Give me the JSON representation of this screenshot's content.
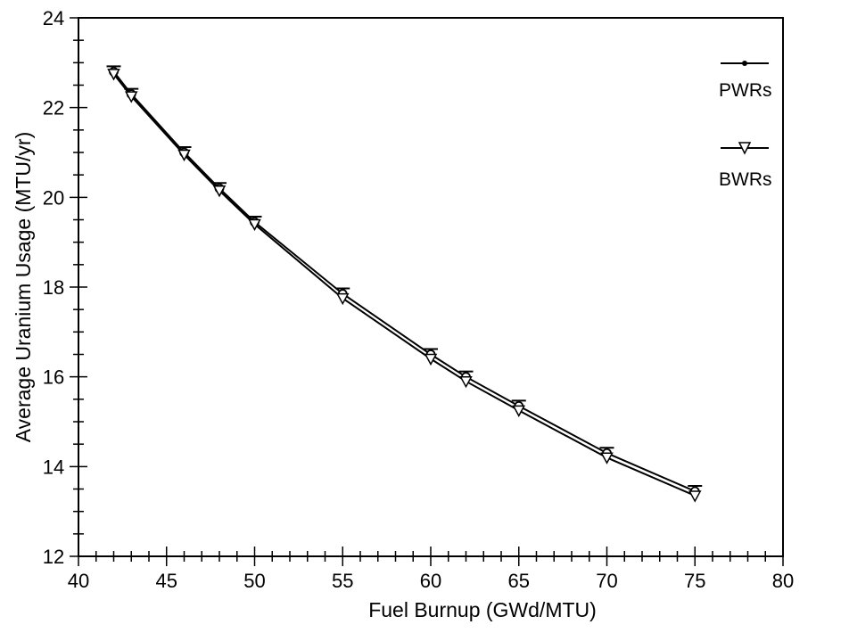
{
  "chart_data": {
    "type": "line",
    "xlabel": "Fuel Burnup  (GWd/MTU)",
    "ylabel": "Average Uranium Usage (MTU/yr)",
    "xlim": [
      40,
      80
    ],
    "ylim": [
      12,
      24
    ],
    "x_ticks": [
      "40",
      "45",
      "50",
      "55",
      "60",
      "65",
      "70",
      "75",
      "80"
    ],
    "y_ticks": [
      "12",
      "14",
      "16",
      "18",
      "20",
      "22",
      "24"
    ],
    "grid": false,
    "legend_position": "top-right",
    "series": [
      {
        "name": "PWRs",
        "marker": "circle-bar",
        "color": "#000000",
        "x": [
          42,
          43,
          46,
          48,
          50,
          55,
          60,
          62,
          65,
          70,
          75
        ],
        "y": [
          22.8,
          22.3,
          21.0,
          20.2,
          19.45,
          17.85,
          16.5,
          16.0,
          15.35,
          14.3,
          13.45
        ]
      },
      {
        "name": "BWRs",
        "marker": "triangle-down",
        "color": "#000000",
        "x": [
          42,
          43,
          46,
          48,
          50,
          55,
          60,
          62,
          65,
          70,
          75
        ],
        "y": [
          22.75,
          22.25,
          20.95,
          20.15,
          19.4,
          17.75,
          16.4,
          15.9,
          15.25,
          14.2,
          13.35
        ]
      }
    ]
  }
}
